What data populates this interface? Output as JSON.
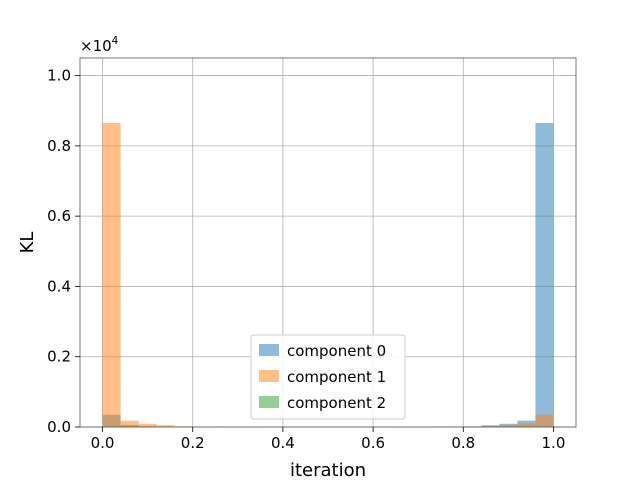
{
  "chart_data": {
    "type": "bar",
    "title": "",
    "xlabel": "iteration",
    "ylabel": "KL",
    "y_scale_label": "×10",
    "y_scale_exponent": "4",
    "xlim": [
      -0.05,
      1.05
    ],
    "ylim": [
      0,
      10500
    ],
    "xticks": [
      0.0,
      0.2,
      0.4,
      0.6,
      0.8,
      1.0
    ],
    "xtick_labels": [
      "0.0",
      "0.2",
      "0.4",
      "0.6",
      "0.8",
      "1.0"
    ],
    "yticks": [
      0,
      2000,
      4000,
      6000,
      8000,
      10000
    ],
    "ytick_labels": [
      "0.0",
      "0.2",
      "0.4",
      "0.6",
      "0.8",
      "1.0"
    ],
    "grid": true,
    "legend_position": "lower-center",
    "bin_edges": [
      0.0,
      0.04,
      0.08,
      0.12,
      0.16,
      0.2,
      0.24,
      0.28,
      0.32,
      0.36,
      0.4,
      0.44,
      0.48,
      0.52,
      0.56,
      0.6,
      0.64,
      0.68,
      0.72,
      0.76,
      0.8,
      0.84,
      0.88,
      0.92,
      0.96,
      1.0
    ],
    "series": [
      {
        "name": "component 0",
        "color": "#1f77b4",
        "alpha": 0.5,
        "values": [
          350,
          60,
          20,
          10,
          8,
          5,
          5,
          4,
          4,
          3,
          3,
          2,
          0,
          2,
          2,
          3,
          5,
          5,
          8,
          10,
          20,
          50,
          90,
          180,
          8650
        ]
      },
      {
        "name": "component 1",
        "color": "#ff7f0e",
        "alpha": 0.5,
        "values": [
          8650,
          180,
          90,
          50,
          20,
          10,
          8,
          5,
          5,
          3,
          2,
          2,
          0,
          2,
          3,
          4,
          4,
          5,
          5,
          8,
          10,
          20,
          60,
          110,
          350
        ]
      },
      {
        "name": "component 2",
        "color": "#2ca02c",
        "alpha": 0.5,
        "values": [
          0,
          0,
          0,
          0,
          0,
          0,
          0,
          0,
          0,
          0,
          0,
          0,
          0,
          0,
          0,
          0,
          0,
          0,
          0,
          0,
          0,
          0,
          0,
          0,
          0
        ]
      }
    ]
  }
}
